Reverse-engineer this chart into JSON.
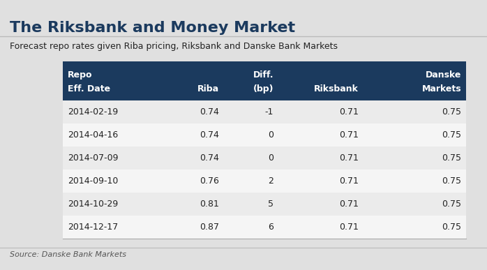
{
  "title": "The Riksbank and Money Market",
  "subtitle": "Forecast repo rates given Riba pricing, Riksbank and Danske Bank Markets",
  "source": "Source: Danske Bank Markets",
  "header_row1": [
    "Repo",
    "",
    "Diff.",
    "",
    "Danske"
  ],
  "header_row2": [
    "Eff. Date",
    "Riba",
    "(bp)",
    "Riksbank",
    "Markets"
  ],
  "rows": [
    [
      "2014-02-19",
      "0.74",
      "-1",
      "0.71",
      "0.75"
    ],
    [
      "2014-04-16",
      "0.74",
      "0",
      "0.71",
      "0.75"
    ],
    [
      "2014-07-09",
      "0.74",
      "0",
      "0.71",
      "0.75"
    ],
    [
      "2014-09-10",
      "0.76",
      "2",
      "0.71",
      "0.75"
    ],
    [
      "2014-10-29",
      "0.81",
      "5",
      "0.71",
      "0.75"
    ],
    [
      "2014-12-17",
      "0.87",
      "6",
      "0.71",
      "0.75"
    ]
  ],
  "header_bg_color": "#1b3a5e",
  "header_text_color": "#ffffff",
  "row_bg_color_even": "#ebebeb",
  "row_bg_color_odd": "#f5f5f5",
  "body_text_color": "#222222",
  "background_color": "#e0e0e0",
  "title_color": "#1b3a5e",
  "subtitle_color": "#222222",
  "source_color": "#555555",
  "col_aligns": [
    "left",
    "right",
    "right",
    "right",
    "right"
  ],
  "title_fontsize": 16,
  "subtitle_fontsize": 9,
  "header_fontsize": 9,
  "body_fontsize": 9,
  "source_fontsize": 8
}
